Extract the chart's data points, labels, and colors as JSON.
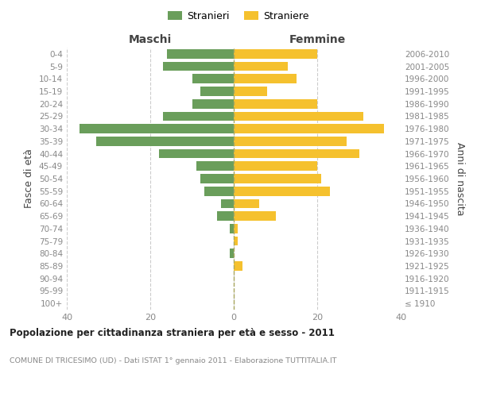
{
  "age_groups": [
    "100+",
    "95-99",
    "90-94",
    "85-89",
    "80-84",
    "75-79",
    "70-74",
    "65-69",
    "60-64",
    "55-59",
    "50-54",
    "45-49",
    "40-44",
    "35-39",
    "30-34",
    "25-29",
    "20-24",
    "15-19",
    "10-14",
    "5-9",
    "0-4"
  ],
  "birth_years": [
    "≤ 1910",
    "1911-1915",
    "1916-1920",
    "1921-1925",
    "1926-1930",
    "1931-1935",
    "1936-1940",
    "1941-1945",
    "1946-1950",
    "1951-1955",
    "1956-1960",
    "1961-1965",
    "1966-1970",
    "1971-1975",
    "1976-1980",
    "1981-1985",
    "1986-1990",
    "1991-1995",
    "1996-2000",
    "2001-2005",
    "2006-2010"
  ],
  "maschi": [
    0,
    0,
    0,
    0,
    1,
    0,
    1,
    4,
    3,
    7,
    8,
    9,
    18,
    33,
    37,
    17,
    10,
    8,
    10,
    17,
    16
  ],
  "femmine": [
    0,
    0,
    0,
    2,
    0,
    1,
    1,
    10,
    6,
    23,
    21,
    20,
    30,
    27,
    36,
    31,
    20,
    8,
    15,
    13,
    20
  ],
  "maschi_color": "#6a9e5b",
  "femmine_color": "#f5c12e",
  "bar_height": 0.75,
  "xlim": 40,
  "title": "Popolazione per cittadinanza straniera per età e sesso - 2011",
  "subtitle": "COMUNE DI TRICESIMO (UD) - Dati ISTAT 1° gennaio 2011 - Elaborazione TUTTITALIA.IT",
  "xlabel_left": "Maschi",
  "xlabel_right": "Femmine",
  "ylabel_left": "Fasce di età",
  "ylabel_right": "Anni di nascita",
  "legend_stranieri": "Stranieri",
  "legend_straniere": "Straniere",
  "background_color": "#ffffff",
  "grid_color": "#cccccc",
  "text_color": "#888888",
  "axis_label_color": "#444444"
}
